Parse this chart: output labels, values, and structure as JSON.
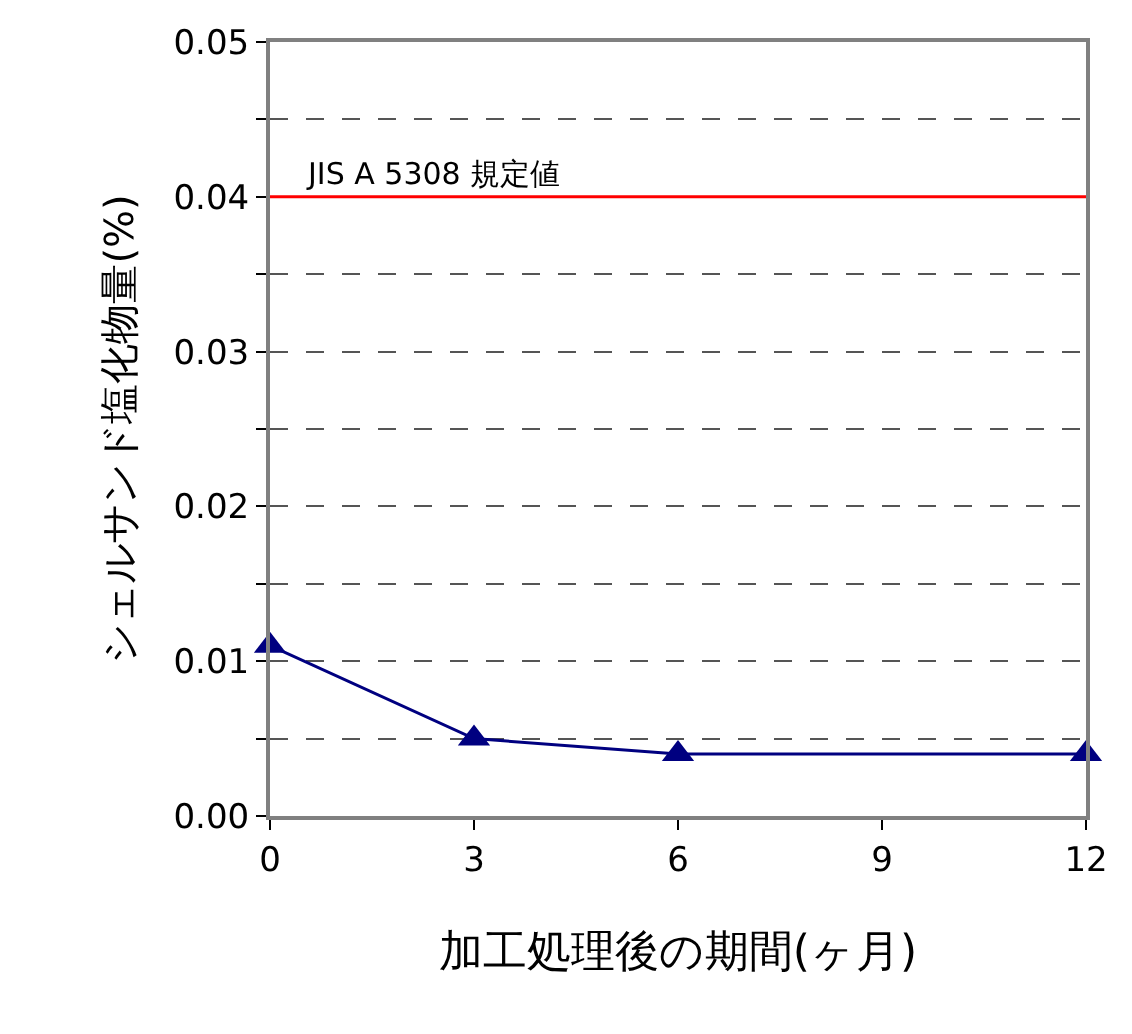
{
  "chart_data": {
    "type": "line",
    "xlabel": "加工処理後の期間(ヶ月)",
    "ylabel": "シェルサンド塩化物量(%)",
    "x": [
      0,
      3,
      6,
      12
    ],
    "series": [
      {
        "color": "#000080",
        "values": [
          0.011,
          0.005,
          0.004,
          0.004
        ]
      }
    ],
    "xlim": [
      0,
      12
    ],
    "xticks": [
      0,
      3,
      6,
      9,
      12
    ],
    "ylim": [
      0,
      0.05
    ],
    "yticks": [
      {
        "value": 0,
        "label": "0.00"
      },
      {
        "value": 0.005,
        "label": null
      },
      {
        "value": 0.01,
        "label": "0.01"
      },
      {
        "value": 0.015,
        "label": null
      },
      {
        "value": 0.02,
        "label": "0.02"
      },
      {
        "value": 0.025,
        "label": null
      },
      {
        "value": 0.03,
        "label": "0.03"
      },
      {
        "value": 0.035,
        "label": null
      },
      {
        "value": 0.04,
        "label": "0.04"
      },
      {
        "value": 0.045,
        "label": null
      },
      {
        "value": 0.05,
        "label": "0.05"
      }
    ],
    "ref_lines": [
      {
        "axis": "y",
        "value": 0.04,
        "label": "JIS A 5308 規定値",
        "color": "#ff0000"
      }
    ],
    "grid": "y",
    "marker": "triangle",
    "line_style": "solid"
  }
}
